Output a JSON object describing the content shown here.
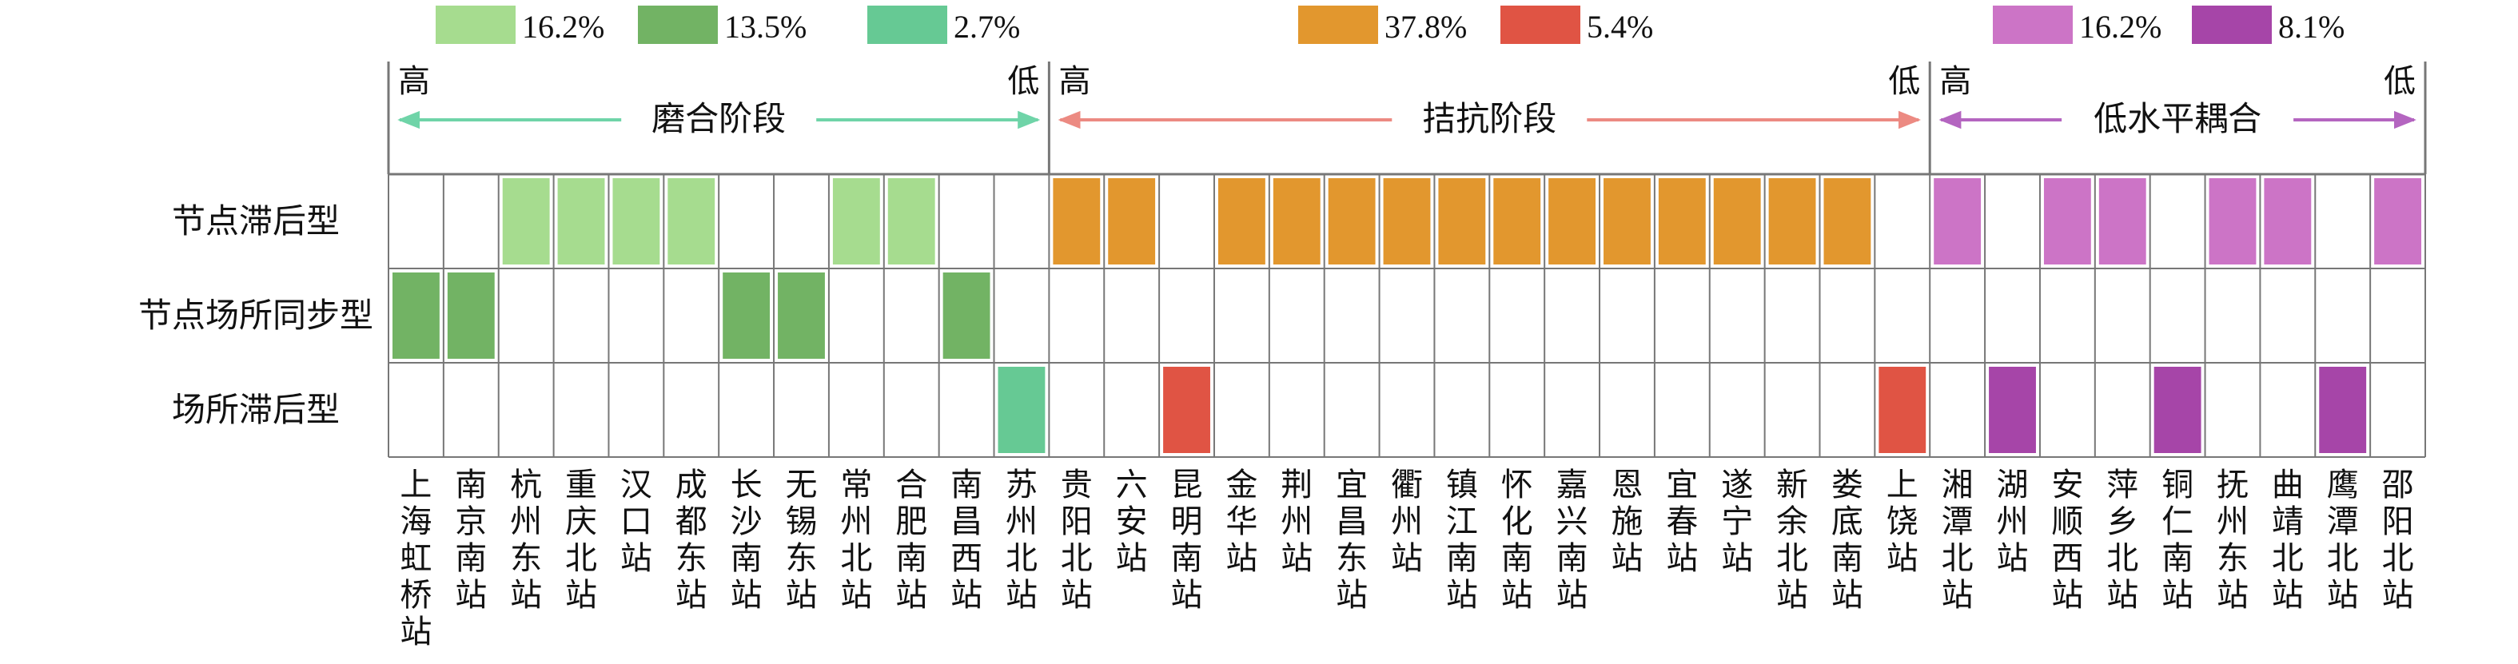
{
  "chart_data": {
    "type": "heatmap",
    "legend": [
      {
        "key": "a",
        "label": "16.2%",
        "color": "#a6dc8f"
      },
      {
        "key": "b",
        "label": "13.5%",
        "color": "#72b364"
      },
      {
        "key": "c",
        "label": "2.7%",
        "color": "#66c994"
      },
      {
        "key": "d",
        "label": "37.8%",
        "color": "#e2972e"
      },
      {
        "key": "e",
        "label": "5.4%",
        "color": "#e05444"
      },
      {
        "key": "f",
        "label": "16.2%",
        "color": "#cc74c6"
      },
      {
        "key": "g",
        "label": "8.1%",
        "color": "#a645a8"
      }
    ],
    "stages": [
      {
        "name": "磨合阶段",
        "high": "高",
        "low": "低",
        "from": 0,
        "to": 12,
        "arrow_color": "#6fd4a8"
      },
      {
        "name": "拮抗阶段",
        "high": "高",
        "low": "低",
        "from": 12,
        "to": 28,
        "arrow_color": "#ec8a82"
      },
      {
        "name": "低水平耦合",
        "high": "高",
        "low": "低",
        "from": 28,
        "to": 37,
        "arrow_color": "#b465c0"
      }
    ],
    "rows": [
      "节点滞后型",
      "节点场所同步型",
      "场所滞后型"
    ],
    "stations": [
      "上海虹桥站",
      "南京南站",
      "杭州东站",
      "重庆北站",
      "汉口站",
      "成都东站",
      "长沙南站",
      "无锡东站",
      "常州北站",
      "合肥南站",
      "南昌西站",
      "苏州北站",
      "贵阳北站",
      "六安站",
      "昆明南站",
      "金华站",
      "荆州站",
      "宜昌东站",
      "衢州站",
      "镇江南站",
      "怀化南站",
      "嘉兴南站",
      "恩施站",
      "宜春站",
      "遂宁站",
      "新余北站",
      "娄底南站",
      "上饶站",
      "湘潭北站",
      "湖州站",
      "安顺西站",
      "萍乡北站",
      "铜仁南站",
      "抚州东站",
      "曲靖北站",
      "鹰潭北站",
      "邵阳北站"
    ],
    "cells": [
      [
        null,
        null,
        "a",
        "a",
        "a",
        "a",
        null,
        null,
        "a",
        "a",
        null,
        null,
        "d",
        "d",
        null,
        "d",
        "d",
        "d",
        "d",
        "d",
        "d",
        "d",
        "d",
        "d",
        "d",
        "d",
        "d",
        null,
        "f",
        null,
        "f",
        "f",
        null,
        "f",
        "f",
        null,
        "f"
      ],
      [
        "b",
        "b",
        null,
        null,
        null,
        null,
        "b",
        "b",
        null,
        null,
        "b",
        null,
        null,
        null,
        null,
        null,
        null,
        null,
        null,
        null,
        null,
        null,
        null,
        null,
        null,
        null,
        null,
        null,
        null,
        null,
        null,
        null,
        null,
        null,
        null,
        null,
        null
      ],
      [
        null,
        null,
        null,
        null,
        null,
        null,
        null,
        null,
        null,
        null,
        null,
        "c",
        null,
        null,
        "e",
        null,
        null,
        null,
        null,
        null,
        null,
        null,
        null,
        null,
        null,
        null,
        null,
        "e",
        null,
        "g",
        null,
        null,
        "g",
        null,
        null,
        "g",
        null
      ]
    ]
  }
}
